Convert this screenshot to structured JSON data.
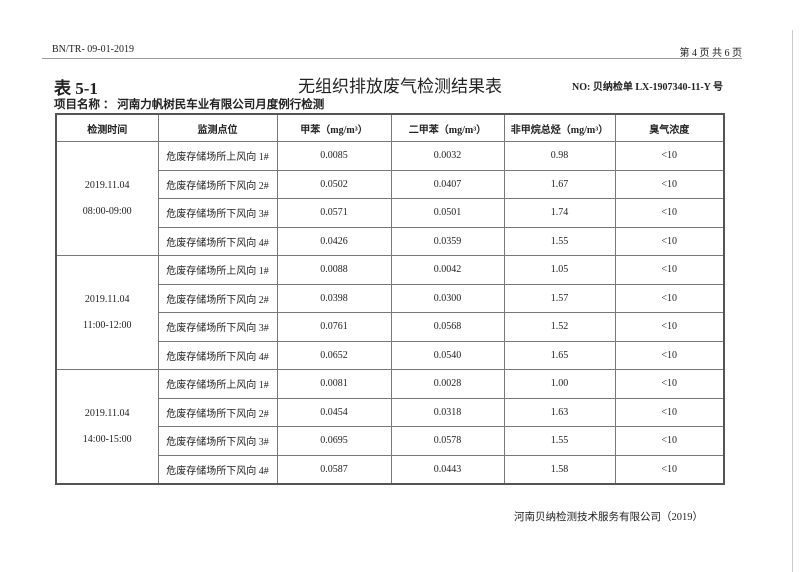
{
  "header": {
    "doc_code": "BN/TR- 09-01-2019",
    "page": "第 4 页 共 6 页"
  },
  "table_no": "表 5-1",
  "title": "无组织排放废气检测结果表",
  "report_no": "NO: 贝纳检单 LX-1907340-11-Y 号",
  "project": "项目名称 ： 河南力帆树民车业有限公司月度例行检测",
  "columns": [
    "检测时间",
    "监测点位",
    "甲苯（mg/m³）",
    "二甲苯（mg/m³）",
    "非甲烷总烃（mg/m³）",
    "臭气浓度"
  ],
  "groups": [
    {
      "date": "2019.11.04",
      "time": "08:00-09:00",
      "rows": [
        [
          "危废存储场所上风向 1#",
          "0.0085",
          "0.0032",
          "0.98",
          "<10"
        ],
        [
          "危废存储场所下风向 2#",
          "0.0502",
          "0.0407",
          "1.67",
          "<10"
        ],
        [
          "危废存储场所下风向 3#",
          "0.0571",
          "0.0501",
          "1.74",
          "<10"
        ],
        [
          "危废存储场所下风向 4#",
          "0.0426",
          "0.0359",
          "1.55",
          "<10"
        ]
      ]
    },
    {
      "date": "2019.11.04",
      "time": "11:00-12:00",
      "rows": [
        [
          "危废存储场所上风向 1#",
          "0.0088",
          "0.0042",
          "1.05",
          "<10"
        ],
        [
          "危废存储场所下风向 2#",
          "0.0398",
          "0.0300",
          "1.57",
          "<10"
        ],
        [
          "危废存储场所下风向 3#",
          "0.0761",
          "0.0568",
          "1.52",
          "<10"
        ],
        [
          "危废存储场所下风向 4#",
          "0.0652",
          "0.0540",
          "1.65",
          "<10"
        ]
      ]
    },
    {
      "date": "2019.11.04",
      "time": "14:00-15:00",
      "rows": [
        [
          "危废存储场所上风向 1#",
          "0.0081",
          "0.0028",
          "1.00",
          "<10"
        ],
        [
          "危废存储场所下风向 2#",
          "0.0454",
          "0.0318",
          "1.63",
          "<10"
        ],
        [
          "危废存储场所下风向 3#",
          "0.0695",
          "0.0578",
          "1.55",
          "<10"
        ],
        [
          "危废存储场所下风向 4#",
          "0.0587",
          "0.0443",
          "1.58",
          "<10"
        ]
      ]
    }
  ],
  "footer": "河南贝纳检测技术服务有限公司（2019）"
}
